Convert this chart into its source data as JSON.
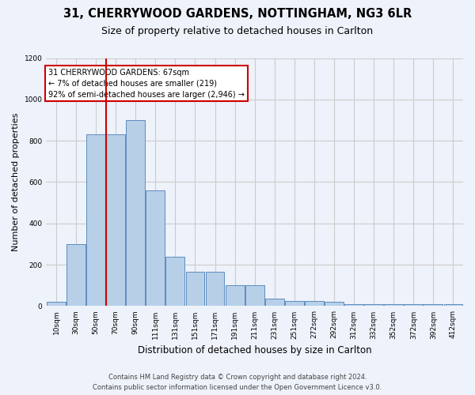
{
  "title_line1": "31, CHERRYWOOD GARDENS, NOTTINGHAM, NG3 6LR",
  "title_line2": "Size of property relative to detached houses in Carlton",
  "xlabel": "Distribution of detached houses by size in Carlton",
  "ylabel": "Number of detached properties",
  "footer_line1": "Contains HM Land Registry data © Crown copyright and database right 2024.",
  "footer_line2": "Contains public sector information licensed under the Open Government Licence v3.0.",
  "categories": [
    "10sqm",
    "30sqm",
    "50sqm",
    "70sqm",
    "90sqm",
    "111sqm",
    "131sqm",
    "151sqm",
    "171sqm",
    "191sqm",
    "211sqm",
    "231sqm",
    "251sqm",
    "272sqm",
    "292sqm",
    "312sqm",
    "332sqm",
    "352sqm",
    "372sqm",
    "392sqm",
    "412sqm"
  ],
  "values": [
    20,
    300,
    830,
    830,
    900,
    560,
    240,
    165,
    165,
    100,
    100,
    35,
    25,
    25,
    20,
    10,
    10,
    10,
    10,
    10,
    10
  ],
  "bar_color": "#b8cfe8",
  "bar_edge_color": "#5b8dc0",
  "marker_index": 3,
  "marker_label_line1": "31 CHERRYWOOD GARDENS: 67sqm",
  "marker_label_line2": "← 7% of detached houses are smaller (219)",
  "marker_label_line3": "92% of semi-detached houses are larger (2,946) →",
  "annotation_box_color": "#ffffff",
  "annotation_box_edge_color": "#cc0000",
  "vline_color": "#cc0000",
  "ylim": [
    0,
    1200
  ],
  "yticks": [
    0,
    200,
    400,
    600,
    800,
    1000,
    1200
  ],
  "grid_color": "#cccccc",
  "bg_color": "#eef2fa",
  "title_fontsize": 10.5,
  "subtitle_fontsize": 9,
  "ylabel_fontsize": 8,
  "xlabel_fontsize": 8.5,
  "tick_fontsize": 6.5,
  "footer_fontsize": 6
}
